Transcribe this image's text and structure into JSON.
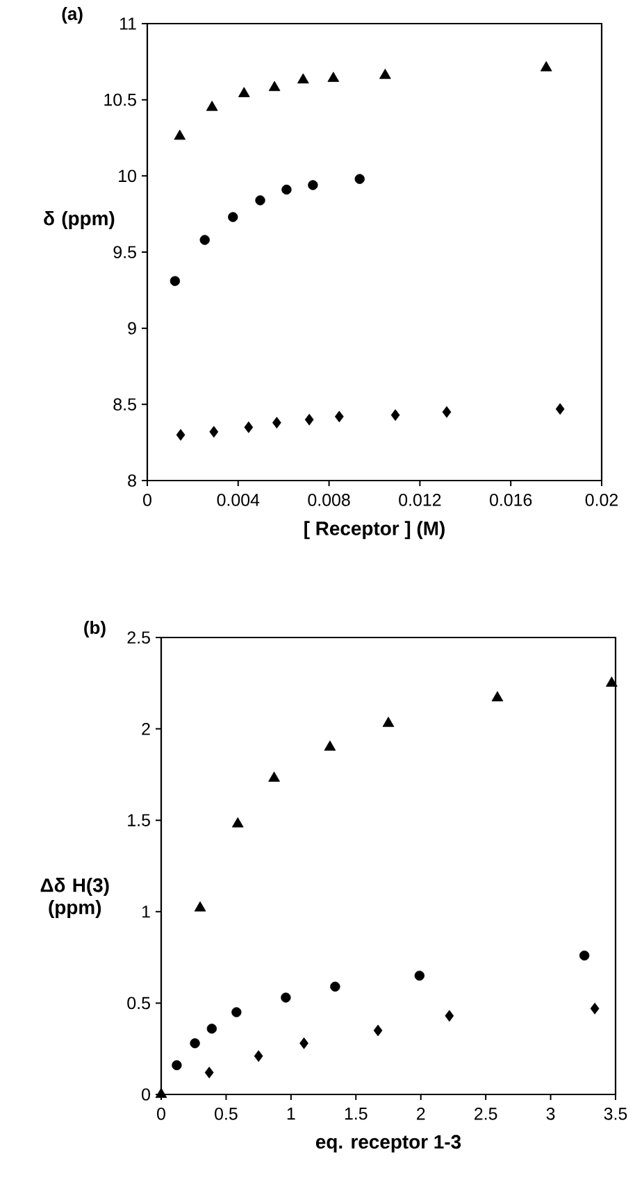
{
  "chart_data": [
    {
      "type": "scatter",
      "title": "(a)",
      "xlabel": "[ Receptor ] (M)",
      "ylabel": "δ (ppm)",
      "xlim": [
        0,
        0.02
      ],
      "ylim": [
        8,
        11
      ],
      "xticks": [
        0,
        0.004,
        0.008,
        0.012,
        0.016,
        0.02
      ],
      "yticks": [
        8,
        8.5,
        9,
        9.5,
        10,
        10.5,
        11
      ],
      "series": [
        {
          "color": "#000000",
          "marker": "triangle",
          "x": [
            0.00143,
            0.00285,
            0.00426,
            0.0056,
            0.00686,
            0.00819,
            0.01047,
            0.01756
          ],
          "values": [
            10.26,
            10.45,
            10.54,
            10.58,
            10.63,
            10.64,
            10.66,
            10.71
          ]
        },
        {
          "color": "#000000",
          "marker": "circle",
          "x": [
            0.00122,
            0.00253,
            0.00377,
            0.00497,
            0.00613,
            0.00729,
            0.00935
          ],
          "values": [
            9.31,
            9.58,
            9.73,
            9.84,
            9.91,
            9.94,
            9.98
          ]
        },
        {
          "color": "#000000",
          "marker": "diamond",
          "x": [
            0.00147,
            0.00293,
            0.00446,
            0.0057,
            0.00713,
            0.00845,
            0.01092,
            0.01318,
            0.01817
          ],
          "values": [
            8.3,
            8.32,
            8.35,
            8.38,
            8.4,
            8.42,
            8.43,
            8.45,
            8.47
          ]
        }
      ]
    },
    {
      "type": "scatter",
      "title": "(b)",
      "xlabel": "eq. receptor 1-3",
      "ylabel": "Δδ H(3) (ppm)",
      "xlim": [
        0,
        3.5
      ],
      "ylim": [
        0,
        2.5
      ],
      "xticks": [
        0,
        0.5,
        1,
        1.5,
        2,
        2.5,
        3,
        3.5
      ],
      "yticks": [
        0,
        0.5,
        1,
        1.5,
        2,
        2.5
      ],
      "series": [
        {
          "color": "#000000",
          "marker": "triangle",
          "x": [
            0,
            0.3,
            0.59,
            0.87,
            1.3,
            1.75,
            2.59,
            3.47
          ],
          "values": [
            0,
            1.02,
            1.48,
            1.73,
            1.9,
            2.03,
            2.17,
            2.25
          ]
        },
        {
          "color": "#000000",
          "marker": "circle",
          "x": [
            0.12,
            0.26,
            0.39,
            0.58,
            0.96,
            1.34,
            1.99,
            3.26
          ],
          "values": [
            0.16,
            0.28,
            0.36,
            0.45,
            0.53,
            0.59,
            0.65,
            0.76
          ]
        },
        {
          "color": "#000000",
          "marker": "diamond",
          "x": [
            0.37,
            0.75,
            1.1,
            1.67,
            2.22,
            3.34
          ],
          "values": [
            0.12,
            0.21,
            0.28,
            0.35,
            0.43,
            0.47
          ]
        }
      ]
    }
  ]
}
